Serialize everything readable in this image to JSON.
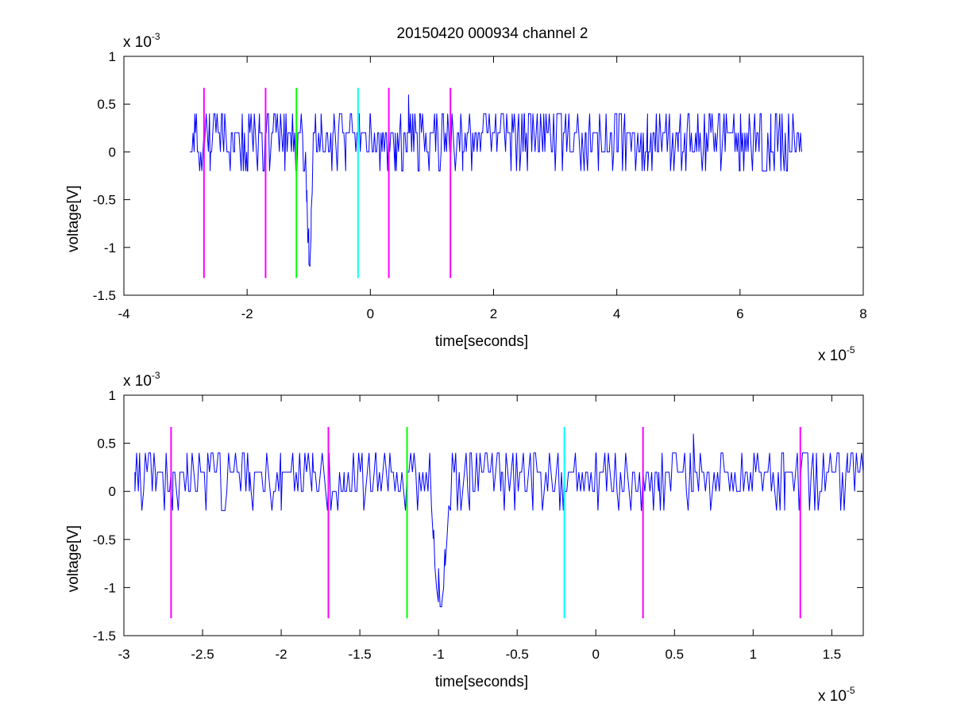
{
  "figure": {
    "title": "20150420 000934 channel 2"
  },
  "colors": {
    "signal": "#0000ff",
    "magenta": "#ff00ff",
    "green": "#00ff00",
    "cyan": "#00ffff",
    "axis": "#000000"
  },
  "chart_data": [
    {
      "type": "line",
      "title": "20150420 000934 channel 2",
      "xlabel": "time[seconds]",
      "ylabel": "voltage[V]",
      "x_exponent": "x 10",
      "x_exponent_power": "-5",
      "y_exponent": "x 10",
      "y_exponent_power": "-3",
      "x_scale": 1e-05,
      "y_scale": 0.001,
      "xlim": [
        -4,
        8
      ],
      "ylim": [
        -1.5,
        1
      ],
      "xticks": [
        -4,
        -2,
        0,
        2,
        4,
        6,
        8
      ],
      "xtick_labels": [
        "-4",
        "-2",
        "0",
        "2",
        "4",
        "6",
        "8"
      ],
      "yticks": [
        1,
        0.5,
        0,
        -0.5,
        -1,
        -1.5
      ],
      "ytick_labels": [
        "1",
        "0.5",
        "0",
        "-0.5",
        "-1",
        "-1.5"
      ],
      "grid": false,
      "signal_x_range": [
        -2.93,
        7.0
      ],
      "series": [
        {
          "color": "#0000ff",
          "x": [
            -2.93,
            -2.85,
            -2.7,
            -2.6,
            -2.4,
            -2.2,
            -2.0,
            -1.8,
            -1.6,
            -1.4,
            -1.3,
            -1.2,
            -1.1,
            -1.03,
            -1.0,
            -0.98,
            -0.96,
            -0.9,
            -0.8,
            -0.6,
            -0.4,
            -0.2,
            0.0,
            0.2,
            0.4,
            0.6,
            0.62,
            0.64,
            0.8,
            1.0,
            1.5,
            2.0,
            2.5,
            3.0,
            3.5,
            4.0,
            4.5,
            5.0,
            5.5,
            6.0,
            6.5,
            7.0
          ],
          "y": [
            0.0,
            0.4,
            0.2,
            -0.2,
            0.4,
            0.2,
            -0.2,
            0.4,
            0.2,
            0.4,
            0.2,
            -0.2,
            0.2,
            -0.4,
            -0.8,
            -1.2,
            -0.6,
            0.2,
            0.4,
            0.2,
            -0.2,
            0.2,
            0.4,
            0.2,
            -0.2,
            0.2,
            0.6,
            0.2,
            0.4,
            0.2,
            -0.2,
            0.2,
            0.4,
            -0.2,
            0.2,
            0.4,
            -0.2,
            0.2,
            0.4,
            -0.2,
            0.4,
            0.0
          ]
        }
      ],
      "markers": [
        {
          "x": -2.7,
          "color": "#ff00ff",
          "y_range": [
            -1.32,
            0.67
          ]
        },
        {
          "x": -1.7,
          "color": "#ff00ff",
          "y_range": [
            -1.32,
            0.67
          ]
        },
        {
          "x": -1.2,
          "color": "#00ff00",
          "y_range": [
            -1.32,
            0.67
          ]
        },
        {
          "x": -0.2,
          "color": "#00ffff",
          "y_range": [
            -1.32,
            0.67
          ]
        },
        {
          "x": 0.3,
          "color": "#ff00ff",
          "y_range": [
            -1.32,
            0.67
          ]
        },
        {
          "x": 1.3,
          "color": "#ff00ff",
          "y_range": [
            -1.32,
            0.67
          ]
        }
      ]
    },
    {
      "type": "line",
      "title": "",
      "xlabel": "time[seconds]",
      "ylabel": "voltage[V]",
      "x_exponent": "x 10",
      "x_exponent_power": "-5",
      "y_exponent": "x 10",
      "y_exponent_power": "-3",
      "x_scale": 1e-05,
      "y_scale": 0.001,
      "xlim": [
        -3.0,
        1.7
      ],
      "ylim": [
        -1.5,
        1
      ],
      "xticks": [
        -3,
        -2.5,
        -2,
        -1.5,
        -1,
        -0.5,
        0,
        0.5,
        1,
        1.5
      ],
      "xtick_labels": [
        "-3",
        "-2.5",
        "-2",
        "-1.5",
        "-1",
        "-0.5",
        "0",
        "0.5",
        "1",
        "1.5"
      ],
      "yticks": [
        1,
        0.5,
        0,
        -0.5,
        -1,
        -1.5
      ],
      "ytick_labels": [
        "1",
        "0.5",
        "0",
        "-0.5",
        "-1",
        "-1.5"
      ],
      "grid": false,
      "signal_x_range": [
        -2.93,
        1.7
      ],
      "series": [
        {
          "color": "#0000ff",
          "x": [
            -2.93,
            -2.9,
            -2.8,
            -2.7,
            -2.69,
            -2.6,
            -2.4,
            -2.2,
            -2.0,
            -1.8,
            -1.6,
            -1.4,
            -1.3,
            -1.2,
            -1.1,
            -1.03,
            -1.0,
            -0.98,
            -0.96,
            -0.9,
            -0.8,
            -0.6,
            -0.4,
            -0.2,
            0.0,
            0.2,
            0.29,
            0.4,
            0.6,
            0.62,
            0.64,
            0.8,
            1.0,
            1.2,
            1.4,
            1.6,
            1.7
          ],
          "y": [
            0.0,
            0.4,
            0.2,
            0.2,
            -0.2,
            0.2,
            0.4,
            0.2,
            -0.2,
            0.4,
            0.2,
            0.4,
            0.2,
            0.2,
            0.2,
            -0.4,
            -0.8,
            -1.2,
            -0.6,
            0.2,
            0.4,
            0.2,
            -0.2,
            0.2,
            0.4,
            0.2,
            -0.2,
            0.2,
            0.4,
            0.6,
            0.2,
            0.4,
            0.2,
            -0.2,
            0.2,
            0.4,
            0.0
          ]
        }
      ],
      "markers": [
        {
          "x": -2.7,
          "color": "#ff00ff",
          "y_range": [
            -1.32,
            0.67
          ]
        },
        {
          "x": -1.7,
          "color": "#ff00ff",
          "y_range": [
            -1.32,
            0.67
          ]
        },
        {
          "x": -1.2,
          "color": "#00ff00",
          "y_range": [
            -1.32,
            0.67
          ]
        },
        {
          "x": -0.2,
          "color": "#00ffff",
          "y_range": [
            -1.32,
            0.67
          ]
        },
        {
          "x": 0.3,
          "color": "#ff00ff",
          "y_range": [
            -1.32,
            0.67
          ]
        },
        {
          "x": 1.3,
          "color": "#ff00ff",
          "y_range": [
            -1.32,
            0.67
          ]
        }
      ]
    }
  ]
}
